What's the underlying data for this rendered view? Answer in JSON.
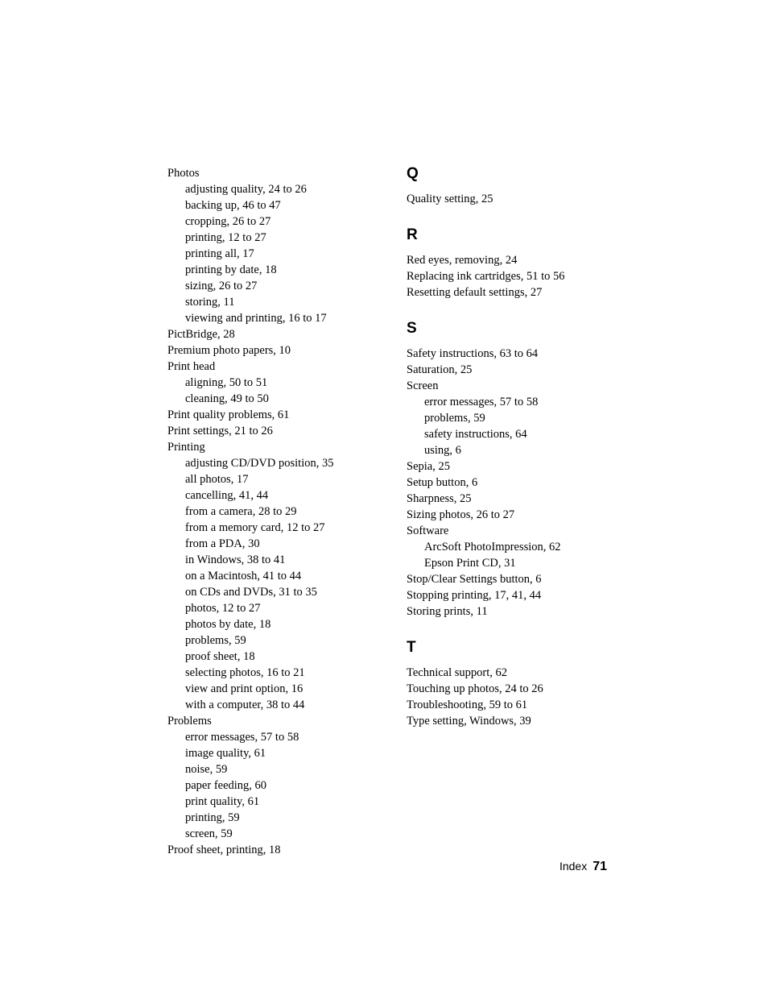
{
  "left": {
    "groups": [
      {
        "head": "Photos",
        "subs": [
          "adjusting quality, 24 to 26",
          "backing up, 46 to 47",
          "cropping, 26 to 27",
          "printing, 12 to 27",
          "printing all, 17",
          "printing by date, 18",
          "sizing, 26 to 27",
          "storing, 11",
          "viewing and printing, 16 to 17"
        ]
      },
      {
        "head": "PictBridge, 28"
      },
      {
        "head": "Premium photo papers, 10"
      },
      {
        "head": "Print head",
        "subs": [
          "aligning, 50 to 51",
          "cleaning, 49 to 50"
        ]
      },
      {
        "head": "Print quality problems, 61"
      },
      {
        "head": "Print settings, 21 to 26"
      },
      {
        "head": "Printing",
        "subs": [
          "adjusting CD/DVD position, 35",
          "all photos, 17",
          "cancelling, 41, 44",
          "from a camera, 28 to 29",
          "from a memory card, 12 to 27",
          "from a PDA, 30",
          "in Windows, 38 to 41",
          "on a Macintosh, 41 to 44",
          "on CDs and DVDs, 31 to 35",
          "photos, 12 to 27",
          "photos by date, 18",
          "problems, 59",
          "proof sheet, 18",
          "selecting photos, 16 to 21",
          "view and print option, 16",
          "with a computer, 38 to 44"
        ]
      },
      {
        "head": "Problems",
        "subs": [
          "error messages, 57 to 58",
          "image quality, 61",
          "noise, 59",
          "paper feeding, 60",
          "print quality, 61",
          "printing, 59",
          "screen, 59"
        ]
      },
      {
        "head": "Proof sheet, printing, 18"
      }
    ]
  },
  "right": {
    "sections": [
      {
        "letter": "Q",
        "groups": [
          {
            "head": "Quality setting, 25"
          }
        ]
      },
      {
        "letter": "R",
        "groups": [
          {
            "head": "Red eyes, removing, 24"
          },
          {
            "head": "Replacing ink cartridges, 51 to 56"
          },
          {
            "head": "Resetting default settings, 27"
          }
        ]
      },
      {
        "letter": "S",
        "groups": [
          {
            "head": "Safety instructions, 63 to 64"
          },
          {
            "head": "Saturation, 25"
          },
          {
            "head": "Screen",
            "subs": [
              "error messages, 57 to 58",
              "problems, 59",
              "safety instructions, 64",
              "using, 6"
            ]
          },
          {
            "head": "Sepia, 25"
          },
          {
            "head": "Setup button, 6"
          },
          {
            "head": "Sharpness, 25"
          },
          {
            "head": "Sizing photos, 26 to 27"
          },
          {
            "head": "Software",
            "subs": [
              "ArcSoft PhotoImpression, 62",
              "Epson Print CD, 31"
            ]
          },
          {
            "head": "Stop/Clear Settings button, 6"
          },
          {
            "head": "Stopping printing, 17, 41, 44"
          },
          {
            "head": "Storing prints, 11"
          }
        ]
      },
      {
        "letter": "T",
        "groups": [
          {
            "head": "Technical support, 62"
          },
          {
            "head": "Touching up photos, 24 to 26"
          },
          {
            "head": "Troubleshooting, 59 to 61"
          },
          {
            "head": "Type setting, Windows, 39"
          }
        ]
      }
    ]
  },
  "footer": {
    "label": "Index",
    "page": "71"
  }
}
